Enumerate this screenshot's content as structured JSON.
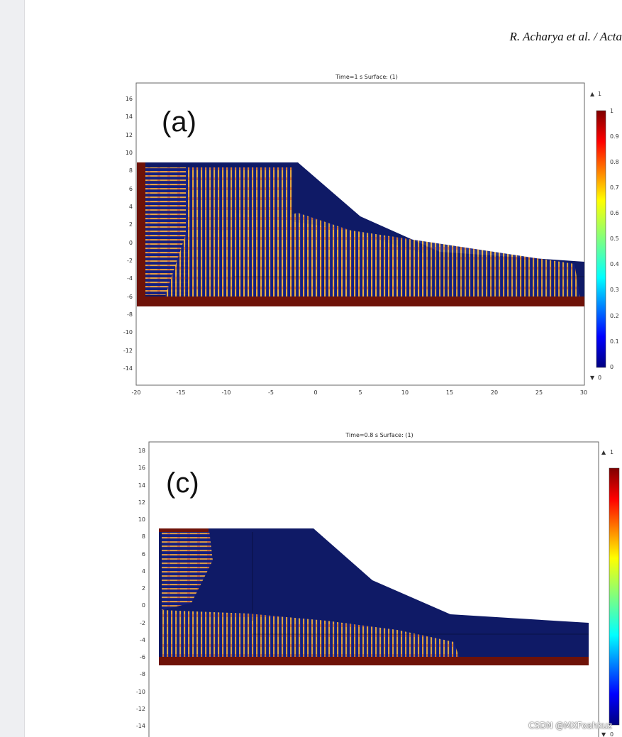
{
  "header": {
    "citation": "R. Acharya et al. / Acta"
  },
  "panels": [
    {
      "panel_label": "(a)",
      "title": "Time=1 s   Surface: (1)",
      "yticks": [
        "16",
        "14",
        "12",
        "10",
        "8",
        "6",
        "4",
        "2",
        "0",
        "-2",
        "-4",
        "-6",
        "-8",
        "-10",
        "-12",
        "-14"
      ],
      "xticks": [
        "-20",
        "-15",
        "-10",
        "-5",
        "0",
        "5",
        "10",
        "15",
        "20",
        "25",
        "30"
      ],
      "colorbar": {
        "max_label": "1",
        "min_label": "0",
        "ticks": [
          "1",
          "0.9",
          "0.8",
          "0.7",
          "0.6",
          "0.5",
          "0.4",
          "0.3",
          "0.2",
          "0.1",
          "0"
        ]
      }
    },
    {
      "panel_label": "(c)",
      "title": "Time=0.8 s   Surface: (1)",
      "yticks": [
        "18",
        "16",
        "14",
        "12",
        "10",
        "8",
        "6",
        "4",
        "2",
        "0",
        "-2",
        "-4",
        "-6",
        "-8",
        "-10",
        "-12",
        "-14"
      ],
      "colorbar": {
        "max_label": "1",
        "min_label": "0"
      }
    }
  ],
  "watermark": "CSDN @MXFoahkuz",
  "colors": {
    "domain_fill": "#0f1a66",
    "substrate": "#6e1208",
    "colormap_low": "#00007f",
    "colormap_high": "#7f0000"
  }
}
